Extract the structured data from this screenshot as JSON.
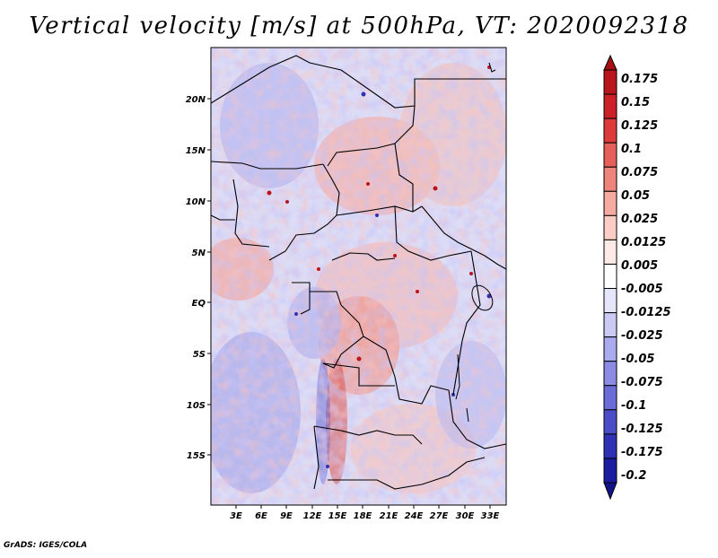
{
  "title": "Vertical velocity [m/s] at 500hPa, VT: 2020092318",
  "credit": "GrADS: IGES/COLA",
  "map": {
    "lon_labels": [
      "3E",
      "6E",
      "9E",
      "12E",
      "15E",
      "18E",
      "21E",
      "24E",
      "27E",
      "30E",
      "33E"
    ],
    "lat_labels": [
      "20N",
      "15N",
      "10N",
      "5N",
      "EQ",
      "5S",
      "10S",
      "15S"
    ]
  },
  "colorbar": {
    "labels": [
      "0.175",
      "0.15",
      "0.125",
      "0.1",
      "0.075",
      "0.05",
      "0.025",
      "0.0125",
      "0.005",
      "-0.005",
      "-0.0125",
      "-0.025",
      "-0.05",
      "-0.075",
      "-0.1",
      "-0.125",
      "-0.175",
      "-0.2"
    ],
    "colors": [
      "#a50f15",
      "#b8161c",
      "#cb2025",
      "#dc3b3a",
      "#e6605a",
      "#ee857c",
      "#f5aba2",
      "#f9cdc6",
      "#fde9e6",
      "#ffffff",
      "#e6e6fb",
      "#cacaf5",
      "#aaaaee",
      "#8c8ce4",
      "#6c6cd8",
      "#4c4cc8",
      "#3030b4",
      "#1c1ca0",
      "#141488"
    ]
  }
}
